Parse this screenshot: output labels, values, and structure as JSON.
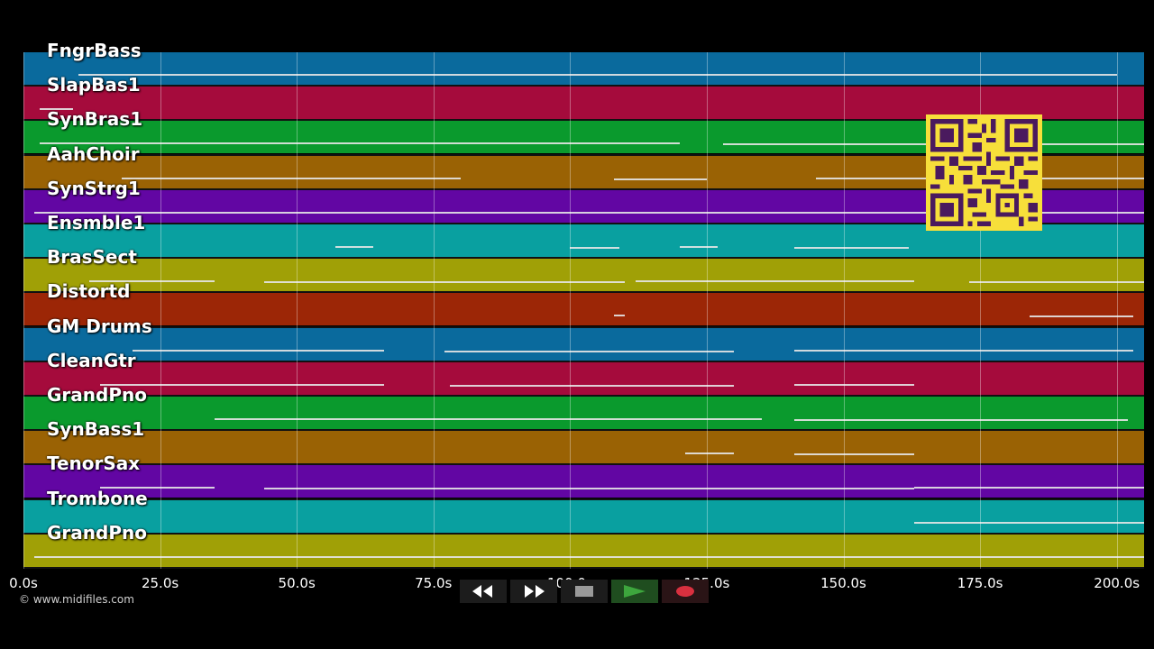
{
  "tracks": [
    {
      "name": "FngrBass",
      "color": "#0a6a9d"
    },
    {
      "name": "SlapBas1",
      "color": "#a50b3c"
    },
    {
      "name": "SynBras1",
      "color": "#0a9a2d"
    },
    {
      "name": "AahChoir",
      "color": "#9a6204"
    },
    {
      "name": "SynStrg1",
      "color": "#6206a3"
    },
    {
      "name": "Ensmble1",
      "color": "#09a0a0"
    },
    {
      "name": "BrasSect",
      "color": "#a0a006"
    },
    {
      "name": "Distortd",
      "color": "#9c2606"
    },
    {
      "name": "GM Drums",
      "color": "#0a6a9d"
    },
    {
      "name": "CleanGtr",
      "color": "#a50b3c"
    },
    {
      "name": "GrandPno",
      "color": "#0a9a2d"
    },
    {
      "name": "SynBass1",
      "color": "#9a6204"
    },
    {
      "name": "TenorSax",
      "color": "#6206a3"
    },
    {
      "name": "Trombone",
      "color": "#09a0a0"
    },
    {
      "name": "GrandPno",
      "color": "#a0a006"
    }
  ],
  "timeline": {
    "max_seconds": 205,
    "ticks": [
      "0.0s",
      "25.0s",
      "50.0s",
      "75.0s",
      "100.0s",
      "125.0s",
      "150.0s",
      "175.0s",
      "200.0s"
    ],
    "tick_values": [
      0,
      25,
      50,
      75,
      100,
      125,
      150,
      175,
      200
    ]
  },
  "notes": [
    [
      [
        10,
        200
      ]
    ],
    [
      [
        3,
        9
      ]
    ],
    [
      [
        3,
        120
      ],
      [
        128,
        205
      ]
    ],
    [
      [
        18,
        80
      ],
      [
        108,
        125
      ],
      [
        145,
        205
      ]
    ],
    [
      [
        2,
        205
      ]
    ],
    [
      [
        57,
        64
      ],
      [
        100,
        109
      ],
      [
        120,
        127
      ],
      [
        141,
        162
      ]
    ],
    [
      [
        12,
        35
      ],
      [
        44,
        110
      ],
      [
        112,
        163
      ],
      [
        173,
        205
      ]
    ],
    [
      [
        108,
        110
      ],
      [
        184,
        203
      ]
    ],
    [
      [
        20,
        66
      ],
      [
        77,
        130
      ],
      [
        141,
        203
      ]
    ],
    [
      [
        14,
        66
      ],
      [
        78,
        130
      ],
      [
        141,
        163
      ]
    ],
    [
      [
        35,
        135
      ],
      [
        141,
        202
      ]
    ],
    [
      [
        121,
        130
      ],
      [
        141,
        163
      ]
    ],
    [
      [
        14,
        35
      ],
      [
        44,
        163
      ],
      [
        163,
        205
      ]
    ],
    [
      [
        163,
        205
      ]
    ],
    [
      [
        2,
        205
      ]
    ]
  ],
  "footer": {
    "copyright": "© www.midifiles.com"
  },
  "transport": {
    "rewind_icon": "rewind-icon",
    "forward_icon": "fast-forward-icon",
    "stop_icon": "stop-icon",
    "play_icon": "play-icon",
    "record_icon": "record-icon",
    "play_color": "#3da63d",
    "record_color": "#d9303f"
  },
  "qr_icon": "qr-code-icon"
}
